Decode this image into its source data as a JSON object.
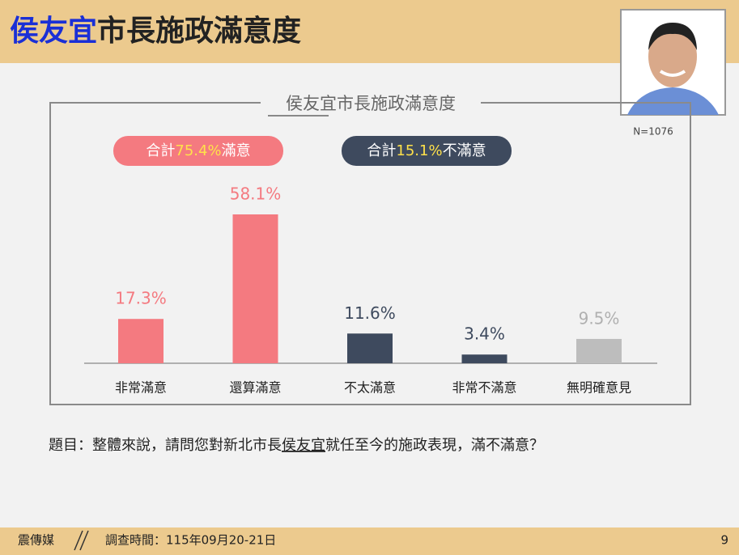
{
  "header": {
    "title_highlight": "侯友宜",
    "title_rest": "市長施政滿意度"
  },
  "sample_note": "N=1076",
  "chart_data": {
    "type": "bar",
    "title": "侯友宜市長施政滿意度",
    "annotations": [
      {
        "parts": [
          "合計",
          "75.4%",
          "滿意"
        ],
        "color": "#f47a80"
      },
      {
        "parts": [
          "合計",
          "15.1%",
          "不滿意"
        ],
        "color": "#3e4a5e"
      }
    ],
    "categories": [
      "非常滿意",
      "還算滿意",
      "不太滿意",
      "非常不滿意",
      "無明確意見"
    ],
    "values": [
      17.3,
      58.1,
      11.6,
      3.4,
      9.5
    ],
    "value_labels": [
      "17.3%",
      "58.1%",
      "11.6%",
      "3.4%",
      "9.5%"
    ],
    "colors": [
      "#f47a80",
      "#f47a80",
      "#3e4a5e",
      "#3e4a5e",
      "#bdbdbd"
    ],
    "label_colors": [
      "#f47a80",
      "#f47a80",
      "#3e4a5e",
      "#3e4a5e",
      "#b0b0b0"
    ]
  },
  "question": {
    "prefix": "題目：整體來說，請問您對新北市長",
    "highlight": "侯友宜",
    "suffix": "就任至今的施政表現，滿不滿意？"
  },
  "footer": {
    "source": "震傳媒",
    "survey_time": "調查時間：115年09月20-21日",
    "page": "9"
  }
}
